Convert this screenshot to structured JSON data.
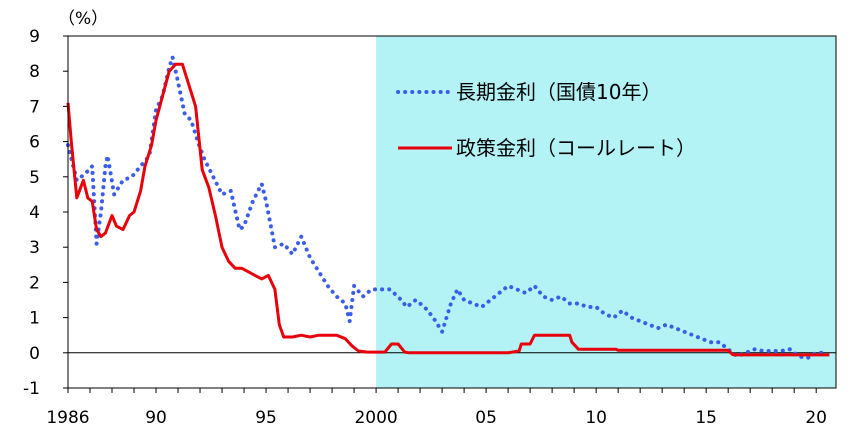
{
  "chart_data": {
    "type": "line",
    "unit_label": "（%）",
    "xlabel": "",
    "ylabel": "",
    "xlim": [
      1986,
      2020.9
    ],
    "ylim": [
      -1,
      9
    ],
    "y_ticks": [
      9,
      8,
      7,
      6,
      5,
      4,
      3,
      2,
      1,
      0,
      -1
    ],
    "x_tick_labels": [
      {
        "x": 1986,
        "label": "1986"
      },
      {
        "x": 1990,
        "label": "90"
      },
      {
        "x": 1995,
        "label": "95"
      },
      {
        "x": 2000,
        "label": "2000"
      },
      {
        "x": 2005,
        "label": "05"
      },
      {
        "x": 2010,
        "label": "10"
      },
      {
        "x": 2015,
        "label": "15"
      },
      {
        "x": 2020,
        "label": "20"
      }
    ],
    "shaded_region": {
      "x_start": 2000,
      "x_end": 2020.9,
      "color": "#b3f2f5"
    },
    "zero_line": 0,
    "legend_placement": "top-right",
    "series": [
      {
        "name": "長期金利（国債10年）",
        "style": "dotted",
        "color": "#3b5ee8",
        "x": [
          1986,
          1986.4,
          1986.8,
          1987.1,
          1987.3,
          1987.5,
          1987.7,
          1987.8,
          1988.1,
          1988.5,
          1988.9,
          1989.3,
          1989.7,
          1990.0,
          1990.3,
          1990.6,
          1990.75,
          1991.0,
          1991.3,
          1991.6,
          1991.9,
          1992.2,
          1992.6,
          1993.0,
          1993.4,
          1993.8,
          1994.0,
          1994.4,
          1994.8,
          1995.0,
          1995.4,
          1995.8,
          1996.2,
          1996.6,
          1997.0,
          1997.4,
          1997.8,
          1998.2,
          1998.6,
          1998.8,
          1999.0,
          1999.4,
          1999.8,
          2000.2,
          2000.6,
          2001.0,
          2001.4,
          2001.8,
          2002.2,
          2002.6,
          2003.0,
          2003.4,
          2003.7,
          2004.0,
          2004.4,
          2004.8,
          2005.2,
          2005.6,
          2006.0,
          2006.4,
          2006.8,
          2007.2,
          2007.6,
          2008.0,
          2008.4,
          2008.8,
          2009.2,
          2009.6,
          2010.0,
          2010.4,
          2010.8,
          2011.2,
          2011.6,
          2012.0,
          2012.4,
          2012.8,
          2013.2,
          2013.6,
          2014.0,
          2014.4,
          2014.8,
          2015.2,
          2015.6,
          2016.0,
          2016.4,
          2016.8,
          2017.2,
          2017.6,
          2018.0,
          2018.4,
          2018.8,
          2019.2,
          2019.6,
          2020.0,
          2020.4
        ],
        "values": [
          5.9,
          4.9,
          5.1,
          5.3,
          3.1,
          4.0,
          5.3,
          5.6,
          4.5,
          4.9,
          5.0,
          5.3,
          5.6,
          6.9,
          7.3,
          8.1,
          8.4,
          7.7,
          6.8,
          6.6,
          6.0,
          5.5,
          5.0,
          4.5,
          4.6,
          3.5,
          3.6,
          4.3,
          4.8,
          4.3,
          3.0,
          3.1,
          2.8,
          3.3,
          2.7,
          2.3,
          1.9,
          1.6,
          1.4,
          0.9,
          1.9,
          1.6,
          1.8,
          1.8,
          1.8,
          1.6,
          1.3,
          1.5,
          1.3,
          1.0,
          0.6,
          1.4,
          1.8,
          1.5,
          1.4,
          1.3,
          1.5,
          1.7,
          1.9,
          1.8,
          1.7,
          1.9,
          1.6,
          1.5,
          1.6,
          1.4,
          1.4,
          1.3,
          1.3,
          1.1,
          1.0,
          1.2,
          1.0,
          0.9,
          0.8,
          0.7,
          0.8,
          0.7,
          0.6,
          0.5,
          0.4,
          0.3,
          0.3,
          0.1,
          -0.1,
          0.0,
          0.1,
          0.05,
          0.05,
          0.05,
          0.1,
          -0.1,
          -0.15,
          0.0,
          0.0
        ]
      },
      {
        "name": "政策金利（コールレート）",
        "style": "solid",
        "color": "#e8000b",
        "x": [
          1986,
          1986.15,
          1986.4,
          1986.7,
          1986.9,
          1987.1,
          1987.3,
          1987.5,
          1987.7,
          1988.0,
          1988.2,
          1988.5,
          1988.8,
          1989.0,
          1989.3,
          1989.5,
          1989.8,
          1990.0,
          1990.3,
          1990.6,
          1990.9,
          1991.2,
          1991.5,
          1991.8,
          1992.1,
          1992.4,
          1992.7,
          1993.0,
          1993.3,
          1993.6,
          1993.9,
          1994.2,
          1994.5,
          1994.8,
          1995.1,
          1995.4,
          1995.6,
          1995.8,
          1996.2,
          1996.6,
          1997.0,
          1997.4,
          1997.8,
          1998.2,
          1998.6,
          1998.9,
          1999.2,
          1999.6,
          2000.0,
          2000.4,
          2000.7,
          2001.0,
          2001.3,
          2001.5,
          2002.0,
          2003.0,
          2004.0,
          2005.0,
          2006.0,
          2006.5,
          2006.6,
          2007.0,
          2007.2,
          2008.0,
          2008.8,
          2008.9,
          2009.2,
          2010.0,
          2010.9,
          2011.0,
          2012.0,
          2013.0,
          2014.0,
          2015.0,
          2016.0,
          2016.2,
          2016.4,
          2017.0,
          2018.0,
          2019.0,
          2020.0,
          2020.6
        ],
        "values": [
          7.1,
          6.0,
          4.4,
          4.9,
          4.4,
          4.3,
          3.5,
          3.3,
          3.4,
          3.9,
          3.6,
          3.5,
          3.9,
          4.0,
          4.6,
          5.3,
          5.9,
          6.6,
          7.3,
          8.0,
          8.2,
          8.2,
          7.6,
          7.0,
          5.2,
          4.7,
          3.9,
          3.0,
          2.6,
          2.4,
          2.4,
          2.3,
          2.2,
          2.1,
          2.2,
          1.8,
          0.8,
          0.45,
          0.45,
          0.5,
          0.45,
          0.5,
          0.5,
          0.5,
          0.4,
          0.2,
          0.05,
          0.02,
          0.02,
          0.02,
          0.25,
          0.25,
          0.02,
          0.0,
          0.0,
          0.0,
          0.0,
          0.0,
          0.0,
          0.05,
          0.25,
          0.25,
          0.5,
          0.5,
          0.5,
          0.3,
          0.1,
          0.1,
          0.1,
          0.07,
          0.07,
          0.07,
          0.07,
          0.07,
          0.07,
          -0.05,
          -0.06,
          -0.06,
          -0.06,
          -0.06,
          -0.06,
          -0.06
        ]
      }
    ]
  }
}
